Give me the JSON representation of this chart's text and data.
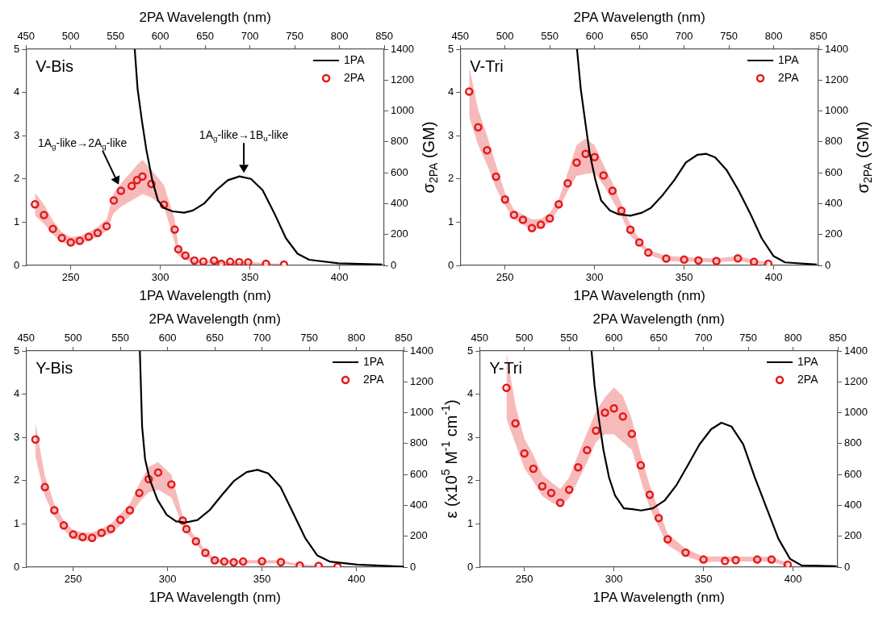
{
  "chart_data": [
    {
      "type": "line",
      "title": "V-Bis",
      "xlabel": "1PA Wavelength (nm)",
      "x2label": "2PA Wavelength (nm)",
      "y2label": "σ$_{2PA}$ (GM)",
      "xlim": [
        225,
        425
      ],
      "xticks": [
        250,
        300,
        350,
        400
      ],
      "x2lim": [
        450,
        850
      ],
      "x2ticks": [
        450,
        500,
        550,
        600,
        650,
        700,
        750,
        800,
        850
      ],
      "ylim": [
        0,
        5
      ],
      "yticks": [
        0,
        1,
        2,
        3,
        4,
        5
      ],
      "y2lim": [
        0,
        1400
      ],
      "y2ticks": [
        0,
        200,
        400,
        600,
        800,
        1000,
        1200,
        1400
      ],
      "legend": "top right",
      "annotations": [
        "1A$_{g}$-like→2A$_{g}$-like",
        "1A$_{g}$-like→1B$_{u}$-like"
      ],
      "series": [
        {
          "name": "1PA",
          "type": "line",
          "color": "#000000",
          "marker": "none",
          "x": [
            285.7,
            287.3,
            289.8,
            292.2,
            295.5,
            298.7,
            302,
            306.8,
            313.3,
            318.2,
            324.7,
            331.2,
            337.7,
            344.2,
            350.6,
            357.1,
            363.6,
            370.1,
            376.6,
            383.1,
            399.4,
            423.8
          ],
          "values": [
            5.0,
            4.08,
            3.32,
            2.67,
            1.97,
            1.5,
            1.33,
            1.25,
            1.22,
            1.27,
            1.44,
            1.74,
            1.97,
            2.06,
            2.0,
            1.74,
            1.21,
            0.63,
            0.27,
            0.13,
            0.05,
            0.02
          ]
        },
        {
          "name": "2PA",
          "type": "scatter",
          "axis": "y2",
          "color": "#e41a1c",
          "marker": "circle",
          "x": [
            230,
            235,
            240,
            245,
            250,
            255,
            260,
            265,
            270,
            274,
            278,
            284,
            287,
            290,
            295,
            302,
            308,
            310,
            314,
            319,
            324,
            330,
            334,
            339,
            344,
            349,
            359,
            369
          ],
          "values": [
            396,
            326,
            237,
            177,
            149,
            159,
            185,
            210,
            254,
            421,
            483,
            514,
            552,
            576,
            527,
            393,
            232,
            105,
            64,
            31,
            25,
            31,
            11,
            23,
            21,
            20,
            10,
            5
          ],
          "lower": [
            322,
            270,
            200,
            150,
            134,
            140,
            160,
            185,
            224,
            340,
            380,
            420,
            440,
            462,
            440,
            380,
            150,
            60,
            40,
            15,
            10,
            10,
            5,
            5,
            5,
            5,
            3,
            2
          ],
          "upper": [
            470,
            395,
            290,
            215,
            183,
            190,
            215,
            250,
            298,
            470,
            530,
            610,
            650,
            683,
            620,
            520,
            300,
            126,
            80,
            35,
            30,
            35,
            25,
            25,
            25,
            25,
            15,
            10
          ]
        }
      ]
    },
    {
      "type": "line",
      "title": "V-Tri",
      "xlabel": "1PA Wavelength (nm)",
      "x2label": "2PA Wavelength (nm)",
      "y2label": "σ$_{2PA}$ (GM)",
      "xlim": [
        225,
        425
      ],
      "xticks": [
        250,
        300,
        350,
        400
      ],
      "x2lim": [
        450,
        850
      ],
      "x2ticks": [
        450,
        500,
        550,
        600,
        650,
        700,
        750,
        800,
        850
      ],
      "ylim": [
        0,
        5
      ],
      "yticks": [
        0,
        1,
        2,
        3,
        4,
        5
      ],
      "y2lim": [
        0,
        1400
      ],
      "y2ticks": [
        0,
        200,
        400,
        600,
        800,
        1000,
        1200,
        1400
      ],
      "legend": "top right",
      "series": [
        {
          "name": "1PA",
          "type": "line",
          "color": "#000000",
          "marker": "none",
          "x": [
            290.2,
            292.3,
            294.8,
            297.2,
            300.5,
            303.7,
            308.6,
            313.5,
            320,
            326.5,
            331.4,
            337.9,
            344.5,
            351,
            357.5,
            362.4,
            367.3,
            373.8,
            380.3,
            386.8,
            393.3,
            399.8,
            406.4,
            424
          ],
          "values": [
            5.0,
            4.08,
            3.32,
            2.61,
            1.97,
            1.5,
            1.27,
            1.18,
            1.15,
            1.22,
            1.33,
            1.62,
            1.97,
            2.38,
            2.56,
            2.58,
            2.5,
            2.2,
            1.74,
            1.21,
            0.63,
            0.22,
            0.07,
            0.02
          ]
        },
        {
          "name": "2PA",
          "type": "scatter",
          "axis": "y2",
          "color": "#e41a1c",
          "marker": "circle",
          "x": [
            230,
            235,
            240,
            245,
            250,
            255,
            260,
            265,
            270,
            275,
            280,
            285,
            290,
            295,
            300,
            305,
            310,
            315,
            320,
            325,
            330,
            340,
            350,
            358,
            368,
            380,
            389,
            397
          ],
          "values": [
            1126,
            895,
            746,
            575,
            427,
            327,
            295,
            242,
            264,
            304,
            396,
            532,
            666,
            722,
            701,
            583,
            483,
            354,
            231,
            149,
            83,
            44,
            38,
            33,
            29,
            46,
            23,
            11
          ],
          "lower": [
            961,
            780,
            650,
            500,
            388,
            300,
            265,
            224,
            240,
            280,
            365,
            480,
            580,
            593,
            600,
            520,
            421,
            320,
            192,
            130,
            69,
            28,
            25,
            22,
            20,
            30,
            12,
            3
          ],
          "upper": [
            1288,
            1010,
            840,
            650,
            470,
            360,
            330,
            298,
            300,
            340,
            430,
            600,
            780,
            822,
            780,
            650,
            535,
            400,
            265,
            170,
            101,
            61,
            55,
            50,
            45,
            62,
            35,
            20
          ]
        }
      ]
    },
    {
      "type": "line",
      "title": "Y-Bis",
      "xlabel": "1PA Wavelength (nm)",
      "x2label": "2PA Wavelength (nm)",
      "xlim": [
        225,
        425
      ],
      "xticks": [
        250,
        300,
        350,
        400
      ],
      "x2lim": [
        450,
        850
      ],
      "x2ticks": [
        450,
        500,
        550,
        600,
        650,
        700,
        750,
        800,
        850
      ],
      "ylim": [
        0,
        5
      ],
      "yticks": [
        0,
        1,
        2,
        3,
        4,
        5
      ],
      "y2lim": [
        0,
        1400
      ],
      "y2ticks": [
        0,
        200,
        400,
        600,
        800,
        1000,
        1200,
        1400
      ],
      "legend": "top right",
      "series": [
        {
          "name": "1PA",
          "type": "line",
          "color": "#000000",
          "marker": "none",
          "x": [
            285.3,
            286.5,
            288.1,
            290.6,
            294.6,
            299.5,
            304.4,
            309.3,
            315.8,
            322.3,
            328.8,
            335.3,
            341.9,
            347.6,
            353.3,
            359.8,
            366.3,
            372.8,
            379.3,
            385.8,
            400.5,
            424.9
          ],
          "values": [
            5.0,
            3.25,
            2.49,
            2.02,
            1.56,
            1.21,
            1.06,
            1.03,
            1.09,
            1.32,
            1.67,
            2.0,
            2.2,
            2.25,
            2.17,
            1.85,
            1.27,
            0.68,
            0.27,
            0.13,
            0.06,
            0.01
          ]
        },
        {
          "name": "2PA",
          "type": "scatter",
          "axis": "y2",
          "color": "#e41a1c",
          "marker": "circle",
          "x": [
            230,
            235,
            240,
            245,
            250,
            255,
            260,
            265,
            270,
            275,
            280,
            285,
            290,
            295,
            302,
            308,
            310,
            315,
            320,
            325,
            330,
            335,
            340,
            350,
            360,
            370,
            380,
            390
          ],
          "values": [
            827,
            518,
            368,
            270,
            211,
            194,
            189,
            222,
            248,
            307,
            368,
            480,
            570,
            613,
            536,
            302,
            247,
            167,
            93,
            44,
            36,
            31,
            36,
            38,
            33,
            11,
            8,
            3
          ],
          "lower": [
            714,
            460,
            330,
            240,
            183,
            170,
            170,
            200,
            216,
            270,
            330,
            420,
            485,
            502,
            450,
            270,
            224,
            150,
            77,
            30,
            25,
            22,
            25,
            25,
            25,
            5,
            2,
            0
          ],
          "upper": [
            934,
            590,
            410,
            300,
            240,
            225,
            225,
            250,
            281,
            345,
            410,
            540,
            649,
            681,
            600,
            330,
            273,
            190,
            109,
            55,
            47,
            45,
            46,
            46,
            44,
            18,
            12,
            6
          ]
        }
      ]
    },
    {
      "type": "line",
      "title": "Y-Tri",
      "xlabel": "1PA Wavelength (nm)",
      "x2label": "2PA Wavelength (nm)",
      "ylabel": "ε (x10$^{5}$ M$^{-1}$ cm$^{-1}$)",
      "xlim": [
        225,
        425
      ],
      "xticks": [
        250,
        300,
        350,
        400
      ],
      "x2lim": [
        450,
        850
      ],
      "x2ticks": [
        450,
        500,
        550,
        600,
        650,
        700,
        750,
        800,
        850
      ],
      "ylim": [
        0,
        5
      ],
      "yticks": [
        0,
        1,
        2,
        3,
        4,
        5
      ],
      "y2lim": [
        0,
        1400
      ],
      "y2ticks": [
        0,
        200,
        400,
        600,
        800,
        1000,
        1200,
        1400
      ],
      "legend": "top right",
      "series": [
        {
          "name": "1PA",
          "type": "line",
          "color": "#000000",
          "marker": "none",
          "x": [
            287.5,
            289.2,
            291.6,
            294.1,
            297.3,
            300.6,
            305.5,
            310.3,
            315.2,
            321.7,
            328.3,
            334.8,
            341.3,
            347.8,
            354.3,
            360,
            365.7,
            372.2,
            378.7,
            385.3,
            391.8,
            398.3,
            404.8,
            424.3
          ],
          "values": [
            5.0,
            4.19,
            3.42,
            2.72,
            2.07,
            1.66,
            1.36,
            1.34,
            1.31,
            1.36,
            1.54,
            1.89,
            2.36,
            2.84,
            3.19,
            3.34,
            3.25,
            2.84,
            2.07,
            1.36,
            0.66,
            0.19,
            0.04,
            0.02
          ]
        },
        {
          "name": "2PA",
          "type": "scatter",
          "axis": "y2",
          "color": "#e41a1c",
          "marker": "circle",
          "x": [
            240,
            245,
            250,
            255,
            260,
            265,
            270,
            275,
            280,
            285,
            290,
            295,
            300,
            305,
            310,
            315,
            320,
            325,
            330,
            340,
            350,
            362,
            368,
            380,
            388,
            397
          ],
          "values": [
            1161,
            931,
            736,
            637,
            524,
            481,
            417,
            501,
            646,
            758,
            884,
            1000,
            1028,
            975,
            863,
            659,
            469,
            318,
            180,
            94,
            49,
            40,
            46,
            49,
            49,
            16
          ],
          "lower": [
            960,
            800,
            640,
            555,
            460,
            420,
            390,
            448,
            560,
            680,
            810,
            860,
            860,
            810,
            760,
            563,
            382,
            260,
            143,
            69,
            33,
            36,
            36,
            36,
            36,
            3
          ],
          "upper": [
            1390,
            1050,
            830,
            728,
            600,
            550,
            506,
            580,
            730,
            870,
            1008,
            1100,
            1164,
            1107,
            960,
            728,
            530,
            370,
            217,
            119,
            69,
            69,
            69,
            66,
            66,
            28
          ]
        }
      ]
    }
  ]
}
